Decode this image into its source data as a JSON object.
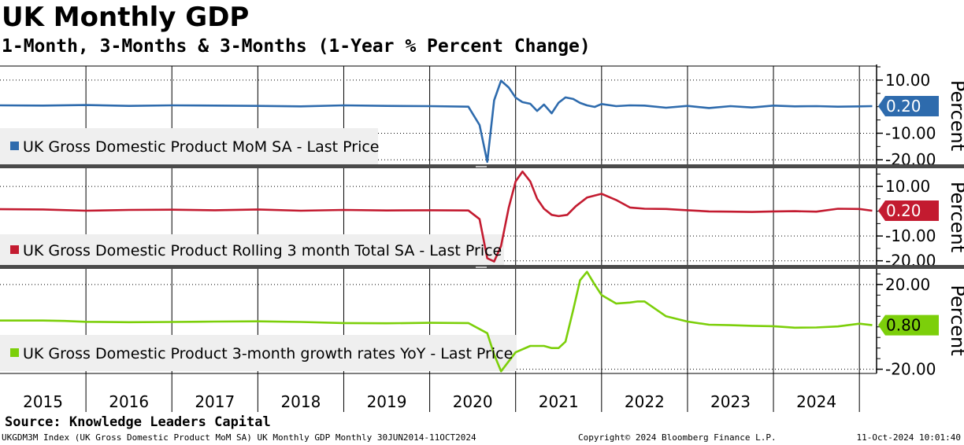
{
  "title": "UK Monthly GDP",
  "subtitle": "1-Month, 3-Months & 3-Months (1-Year % Percent Change)",
  "source": "Source: Knowledge Leaders Capital",
  "footer": {
    "left": "UKGDM3M Index (UK Gross Domestic Product MoM SA) UK Monthly GDP  Monthly 30JUN2014-11OCT2024",
    "center": "Copyright© 2024 Bloomberg Finance L.P.",
    "right": "11-Oct-2024 10:01:40"
  },
  "colors": {
    "mom": "#2e6bad",
    "rolling": "#c31b30",
    "yoy": "#7ccf0a"
  },
  "chart_data": [
    {
      "type": "line",
      "name": "mom-panel",
      "legend": "UK Gross Domestic Product MoM SA - Last Price",
      "legend_position": "bottom-left",
      "ylabel": "Percent",
      "ylim": [
        -22,
        15
      ],
      "yticks": [
        "10.00",
        "-10.00",
        "-20.00"
      ],
      "ytick_values": [
        10,
        -10,
        -20
      ],
      "last_value": 0.2,
      "last_label": "0.20",
      "color": "#2e6bad",
      "x": [
        2014.5,
        2015.0,
        2015.5,
        2016.0,
        2016.5,
        2017.0,
        2017.5,
        2018.0,
        2018.5,
        2019.0,
        2019.5,
        2019.95,
        2020.08,
        2020.17,
        2020.25,
        2020.33,
        2020.42,
        2020.5,
        2020.58,
        2020.67,
        2020.75,
        2020.83,
        2020.92,
        2021.0,
        2021.08,
        2021.17,
        2021.25,
        2021.33,
        2021.42,
        2021.5,
        2021.67,
        2021.83,
        2022.0,
        2022.25,
        2022.5,
        2022.75,
        2023.0,
        2023.25,
        2023.5,
        2023.75,
        2024.0,
        2024.25,
        2024.5,
        2024.65
      ],
      "values": [
        0.5,
        0.4,
        0.6,
        0.3,
        0.5,
        0.4,
        0.3,
        0.1,
        0.5,
        0.3,
        0.2,
        0.0,
        -6.9,
        -20.8,
        2.4,
        9.8,
        7.2,
        3.4,
        1.7,
        1.1,
        -1.6,
        0.8,
        -2.5,
        1.5,
        3.5,
        2.9,
        1.4,
        0.5,
        -0.1,
        1.0,
        0.2,
        0.5,
        0.4,
        -0.4,
        0.3,
        -0.5,
        0.2,
        -0.3,
        0.4,
        0.1,
        0.2,
        0.0,
        0.1,
        0.2
      ]
    },
    {
      "type": "line",
      "name": "rolling-panel",
      "legend": "UK Gross Domestic Product Rolling 3 month Total SA - Last Price",
      "legend_position": "bottom-left",
      "ylabel": "Percent",
      "ylim": [
        -22,
        17
      ],
      "yticks": [
        "10.00",
        "-10.00",
        "-20.00"
      ],
      "ytick_values": [
        10,
        -10,
        -20
      ],
      "last_value": 0.2,
      "last_label": "0.20",
      "color": "#c31b30",
      "x": [
        2014.5,
        2015.0,
        2015.5,
        2016.0,
        2016.5,
        2017.0,
        2017.5,
        2018.0,
        2018.5,
        2019.0,
        2019.5,
        2019.95,
        2020.08,
        2020.17,
        2020.25,
        2020.33,
        2020.42,
        2020.5,
        2020.58,
        2020.67,
        2020.75,
        2020.83,
        2020.92,
        2021.0,
        2021.1,
        2021.2,
        2021.33,
        2021.5,
        2021.67,
        2021.83,
        2022.0,
        2022.25,
        2022.5,
        2022.75,
        2023.0,
        2023.25,
        2023.5,
        2023.75,
        2024.0,
        2024.25,
        2024.5,
        2024.65
      ],
      "values": [
        0.8,
        0.7,
        0.2,
        0.5,
        0.6,
        0.4,
        0.7,
        0.2,
        0.5,
        0.3,
        0.4,
        0.3,
        -3.2,
        -19.0,
        -20.3,
        -14.0,
        1.5,
        12.0,
        16.0,
        12.0,
        5.0,
        1.0,
        -1.5,
        -2.0,
        -1.5,
        2.0,
        5.5,
        7.0,
        4.5,
        1.5,
        1.0,
        0.9,
        0.4,
        -0.1,
        -0.2,
        -0.3,
        -0.1,
        0.0,
        -0.2,
        1.0,
        0.9,
        0.2
      ]
    },
    {
      "type": "line",
      "name": "yoy-panel",
      "legend": "UK Gross Domestic Product 3-month growth rates YoY - Last Price",
      "legend_position": "bottom-left",
      "ylabel": "Percent",
      "ylim": [
        -22,
        27
      ],
      "yticks": [
        "20.00",
        "-20.00"
      ],
      "ytick_values": [
        20,
        -20
      ],
      "last_value": 0.8,
      "last_label": "0.80",
      "color": "#7ccf0a",
      "x": [
        2014.5,
        2015.0,
        2015.25,
        2015.5,
        2016.0,
        2016.5,
        2017.0,
        2017.5,
        2018.0,
        2018.5,
        2019.0,
        2019.5,
        2019.95,
        2020.17,
        2020.25,
        2020.33,
        2020.5,
        2020.67,
        2020.83,
        2020.92,
        2021.0,
        2021.08,
        2021.17,
        2021.25,
        2021.33,
        2021.42,
        2021.5,
        2021.67,
        2021.83,
        2021.92,
        2022.0,
        2022.25,
        2022.5,
        2022.75,
        2023.0,
        2023.25,
        2023.5,
        2023.75,
        2024.0,
        2024.25,
        2024.5,
        2024.65
      ],
      "values": [
        3.0,
        3.0,
        2.8,
        2.4,
        2.2,
        2.3,
        2.5,
        2.6,
        2.3,
        1.8,
        1.7,
        1.9,
        1.8,
        -3.0,
        -13.0,
        -21.0,
        -12.0,
        -9.0,
        -9.0,
        -10.0,
        -10.0,
        -7.0,
        8.0,
        22.0,
        26.0,
        20.0,
        15.0,
        11.0,
        11.5,
        12.0,
        12.0,
        5.0,
        2.5,
        1.0,
        0.8,
        0.5,
        0.3,
        -0.4,
        -0.3,
        0.2,
        1.5,
        0.8
      ]
    }
  ],
  "x_axis": {
    "labels": [
      "2015",
      "2016",
      "2017",
      "2018",
      "2019",
      "2020",
      "2021",
      "2022",
      "2023",
      "2024"
    ],
    "gridlines": [
      2015.5,
      2016.5,
      2017.5,
      2018.5,
      2019.5,
      2020.5,
      2021.5,
      2022.5,
      2023.5,
      2024.5
    ],
    "range": [
      2014.5,
      2024.7
    ]
  }
}
